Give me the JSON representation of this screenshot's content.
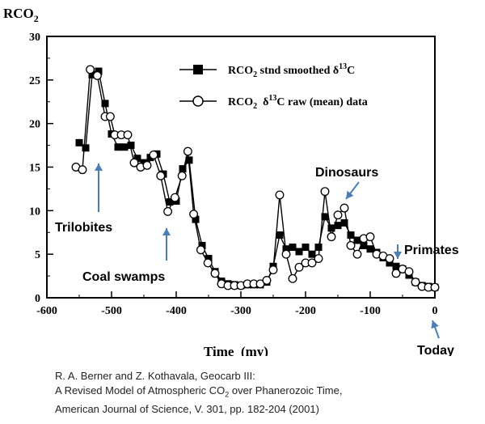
{
  "chart_data": {
    "type": "line",
    "ylabel_main": "RCO",
    "ylabel_sub": "2",
    "xlabel": "Time  (my)",
    "xlim": [
      -600,
      0
    ],
    "ylim": [
      0,
      30
    ],
    "x_ticks": [
      "-600",
      "-500",
      "-400",
      "-300",
      "-200",
      "-100",
      "0"
    ],
    "y_ticks": [
      "0",
      "5",
      "10",
      "15",
      "20",
      "25",
      "30"
    ],
    "legend_position": "top-right",
    "series": [
      {
        "legend_main": "RCO",
        "legend_sub": "2",
        "legend_rest": " stnd smoothed ",
        "legend_delta": "δ",
        "legend_sup": "13",
        "legend_end": "C",
        "marker": "filled-square",
        "x": [
          -550,
          -540,
          -530,
          -520,
          -510,
          -500,
          -490,
          -480,
          -470,
          -460,
          -450,
          -440,
          -430,
          -420,
          -410,
          -400,
          -390,
          -380,
          -370,
          -360,
          -350,
          -340,
          -330,
          -320,
          -310,
          -300,
          -290,
          -280,
          -270,
          -260,
          -250,
          -240,
          -230,
          -220,
          -210,
          -200,
          -190,
          -180,
          -170,
          -160,
          -150,
          -140,
          -130,
          -120,
          -110,
          -100,
          -90,
          -80,
          -70,
          -60,
          -50,
          -40,
          -30,
          -20,
          -10,
          0
        ],
        "y": [
          17.8,
          17.2,
          25.6,
          26.0,
          22.3,
          18.8,
          17.3,
          17.3,
          17.5,
          16.0,
          15.5,
          16.1,
          16.5,
          14.2,
          11.0,
          11.1,
          14.8,
          15.8,
          9.0,
          6.0,
          4.5,
          3.0,
          1.9,
          1.6,
          1.5,
          1.4,
          1.5,
          1.5,
          1.5,
          1.8,
          3.6,
          7.2,
          5.6,
          5.8,
          5.3,
          5.8,
          5.0,
          5.8,
          9.3,
          8.0,
          8.3,
          8.6,
          7.2,
          6.6,
          6.0,
          5.6,
          5.2,
          4.6,
          4.0,
          3.6,
          3.3,
          2.6,
          1.8,
          1.4,
          1.3,
          1.2
        ]
      },
      {
        "legend_main": "RCO",
        "legend_sub": "2",
        "legend_rest": "  ",
        "legend_delta": "δ",
        "legend_sup": "13",
        "legend_end": "C raw (mean) data",
        "marker": "open-circle",
        "x": [
          -555,
          -545,
          -533,
          -522,
          -510,
          -502,
          -495,
          -485,
          -475,
          -465,
          -455,
          -445,
          -435,
          -424,
          -413,
          -402,
          -391,
          -382,
          -373,
          -362,
          -351,
          -340,
          -330,
          -320,
          -310,
          -300,
          -290,
          -280,
          -270,
          -260,
          -250,
          -240,
          -230,
          -220,
          -210,
          -200,
          -190,
          -180,
          -170,
          -160,
          -150,
          -140,
          -130,
          -120,
          -110,
          -100,
          -90,
          -80,
          -70,
          -60,
          -50,
          -40,
          -30,
          -20,
          -10,
          0
        ],
        "y": [
          15.0,
          14.7,
          26.2,
          25.5,
          20.8,
          20.8,
          18.7,
          18.7,
          18.7,
          15.5,
          15.0,
          15.2,
          16.4,
          14.0,
          9.9,
          11.5,
          14.0,
          16.8,
          9.6,
          5.5,
          4.0,
          2.8,
          1.6,
          1.4,
          1.4,
          1.4,
          1.6,
          1.6,
          1.6,
          2.0,
          3.2,
          11.8,
          5.0,
          2.2,
          3.5,
          4.0,
          4.0,
          4.5,
          12.2,
          7.0,
          9.5,
          10.3,
          6.0,
          5.0,
          6.8,
          7.0,
          5.0,
          4.8,
          4.5,
          2.8,
          3.3,
          3.0,
          1.8,
          1.3,
          1.2,
          1.2
        ]
      }
    ],
    "annotations": [
      {
        "label": "Trilobites",
        "target_x": -520,
        "target_y": 16.5
      },
      {
        "label": "Coal swamps",
        "target_x": -420,
        "target_y": 8.2
      },
      {
        "label": "Dinosaurs",
        "target_x": -145,
        "target_y": 11.0
      },
      {
        "label": "Primates",
        "target_x": -50,
        "target_y": 4.5
      },
      {
        "label": "Today",
        "target_x": 0,
        "target_y": -2.5
      }
    ]
  },
  "citation": {
    "line1": "R. A. Berner and Z. Kothavala, Geocarb III:",
    "line2_before": "A Revised Model of Atmospheric CO",
    "line2_sub": "2",
    "line2_after": " over Phanerozoic Time,",
    "line3": "American Journal of Science, V. 301, pp. 182-204 (2001)"
  },
  "colors": {
    "arrow": "#4a7ebb",
    "line": "#000000"
  }
}
